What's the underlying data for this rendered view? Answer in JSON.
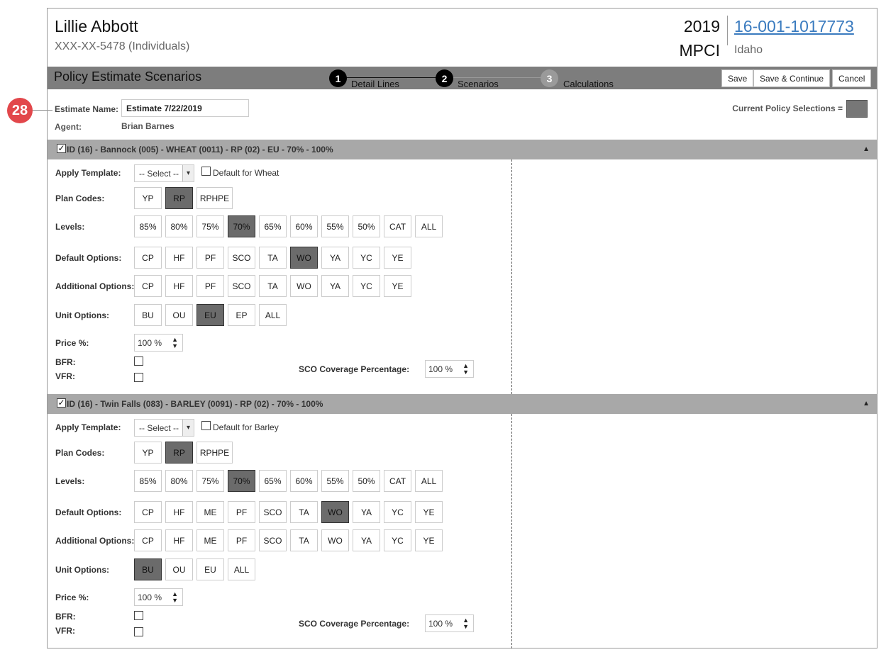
{
  "callout": "28",
  "header": {
    "name": "Lillie Abbott",
    "ssn": "XXX-XX-5478 (Individuals)",
    "year": "2019",
    "program": "MPCI",
    "policy_number": "16-001-1017773",
    "state": "Idaho"
  },
  "titlebar": {
    "title": "Policy Estimate Scenarios",
    "steps": [
      {
        "num": "1",
        "label": "Detail Lines"
      },
      {
        "num": "2",
        "label": "Scenarios"
      },
      {
        "num": "3",
        "label": "Calculations"
      }
    ],
    "save": "Save",
    "save_continue": "Save & Continue",
    "cancel": "Cancel"
  },
  "estimate": {
    "name_label": "Estimate Name:",
    "name_value": "Estimate 7/22/2019",
    "agent_label": "Agent:",
    "agent_value": "Brian Barnes",
    "current_selections_label": "Current Policy Selections =",
    "swatch_color": "#777777"
  },
  "labels": {
    "apply_template": "Apply Template:",
    "plan_codes": "Plan Codes:",
    "levels": "Levels:",
    "default_options": "Default Options:",
    "additional_options": "Additional Options:",
    "unit_options": "Unit Options:",
    "price": "Price %:",
    "bfr": "BFR:",
    "vfr": "VFR:",
    "sco_coverage": "SCO Coverage Percentage:"
  },
  "sections": [
    {
      "header": "ID (16) - Bannock (005) - WHEAT (0011) - RP (02) - EU - 70% - 100%",
      "template_select": "-- Select --",
      "default_for": "Default for Wheat",
      "plan_codes": [
        {
          "label": "YP",
          "sel": false
        },
        {
          "label": "RP",
          "sel": true
        },
        {
          "label": "RPHPE",
          "sel": false
        }
      ],
      "levels": [
        {
          "label": "85%",
          "sel": false
        },
        {
          "label": "80%",
          "sel": false
        },
        {
          "label": "75%",
          "sel": false
        },
        {
          "label": "70%",
          "sel": true
        },
        {
          "label": "65%",
          "sel": false
        },
        {
          "label": "60%",
          "sel": false
        },
        {
          "label": "55%",
          "sel": false
        },
        {
          "label": "50%",
          "sel": false
        },
        {
          "label": "CAT",
          "sel": false
        },
        {
          "label": "ALL",
          "sel": false
        }
      ],
      "default_options": [
        {
          "label": "CP",
          "sel": false
        },
        {
          "label": "HF",
          "sel": false
        },
        {
          "label": "PF",
          "sel": false
        },
        {
          "label": "SCO",
          "sel": false
        },
        {
          "label": "TA",
          "sel": false
        },
        {
          "label": "WO",
          "sel": true
        },
        {
          "label": "YA",
          "sel": false
        },
        {
          "label": "YC",
          "sel": false
        },
        {
          "label": "YE",
          "sel": false
        }
      ],
      "additional_options": [
        {
          "label": "CP",
          "sel": false
        },
        {
          "label": "HF",
          "sel": false
        },
        {
          "label": "PF",
          "sel": false
        },
        {
          "label": "SCO",
          "sel": false
        },
        {
          "label": "TA",
          "sel": false
        },
        {
          "label": "WO",
          "sel": false
        },
        {
          "label": "YA",
          "sel": false
        },
        {
          "label": "YC",
          "sel": false
        },
        {
          "label": "YE",
          "sel": false
        }
      ],
      "unit_options": [
        {
          "label": "BU",
          "sel": false
        },
        {
          "label": "OU",
          "sel": false
        },
        {
          "label": "EU",
          "sel": true
        },
        {
          "label": "EP",
          "sel": false
        },
        {
          "label": "ALL",
          "sel": false
        }
      ],
      "price": "100 %",
      "sco_coverage": "100 %"
    },
    {
      "header": "ID (16) - Twin Falls (083) - BARLEY (0091) - RP (02) - 70% - 100%",
      "template_select": "-- Select --",
      "default_for": "Default for Barley",
      "plan_codes": [
        {
          "label": "YP",
          "sel": false
        },
        {
          "label": "RP",
          "sel": true
        },
        {
          "label": "RPHPE",
          "sel": false
        }
      ],
      "levels": [
        {
          "label": "85%",
          "sel": false
        },
        {
          "label": "80%",
          "sel": false
        },
        {
          "label": "75%",
          "sel": false
        },
        {
          "label": "70%",
          "sel": true
        },
        {
          "label": "65%",
          "sel": false
        },
        {
          "label": "60%",
          "sel": false
        },
        {
          "label": "55%",
          "sel": false
        },
        {
          "label": "50%",
          "sel": false
        },
        {
          "label": "CAT",
          "sel": false
        },
        {
          "label": "ALL",
          "sel": false
        }
      ],
      "default_options": [
        {
          "label": "CP",
          "sel": false
        },
        {
          "label": "HF",
          "sel": false
        },
        {
          "label": "ME",
          "sel": false
        },
        {
          "label": "PF",
          "sel": false
        },
        {
          "label": "SCO",
          "sel": false
        },
        {
          "label": "TA",
          "sel": false
        },
        {
          "label": "WO",
          "sel": true
        },
        {
          "label": "YA",
          "sel": false
        },
        {
          "label": "YC",
          "sel": false
        },
        {
          "label": "YE",
          "sel": false
        }
      ],
      "additional_options": [
        {
          "label": "CP",
          "sel": false
        },
        {
          "label": "HF",
          "sel": false
        },
        {
          "label": "ME",
          "sel": false
        },
        {
          "label": "PF",
          "sel": false
        },
        {
          "label": "SCO",
          "sel": false
        },
        {
          "label": "TA",
          "sel": false
        },
        {
          "label": "WO",
          "sel": false
        },
        {
          "label": "YA",
          "sel": false
        },
        {
          "label": "YC",
          "sel": false
        },
        {
          "label": "YE",
          "sel": false
        }
      ],
      "unit_options": [
        {
          "label": "BU",
          "sel": true
        },
        {
          "label": "OU",
          "sel": false
        },
        {
          "label": "EU",
          "sel": false
        },
        {
          "label": "ALL",
          "sel": false
        }
      ],
      "price": "100 %",
      "sco_coverage": "100 %"
    }
  ]
}
